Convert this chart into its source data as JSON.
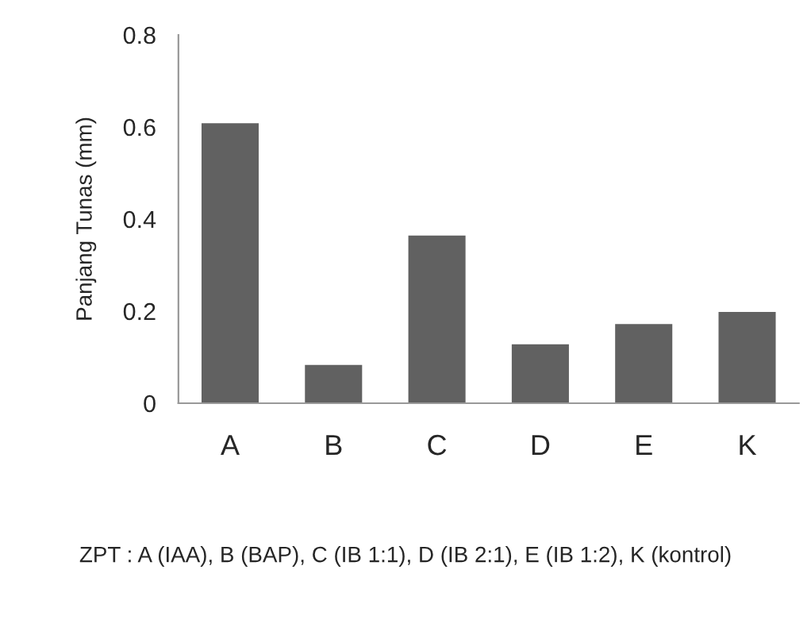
{
  "chart_data": {
    "type": "bar",
    "categories": [
      "A",
      "B",
      "C",
      "D",
      "E",
      "K"
    ],
    "values": [
      0.61,
      0.085,
      0.366,
      0.13,
      0.174,
      0.2
    ],
    "color": "#616161",
    "ylabel": "Panjang Tunas (mm)",
    "ylim": [
      0,
      0.8
    ],
    "yticks": [
      0,
      0.2,
      0.4,
      0.6,
      0.8
    ],
    "grid": false,
    "legend": false,
    "annotations": [
      "ZPT : A (IAA), B (BAP), C (IB 1:1), D (IB 2:1), E (IB 1:2), K (kontrol)"
    ]
  }
}
